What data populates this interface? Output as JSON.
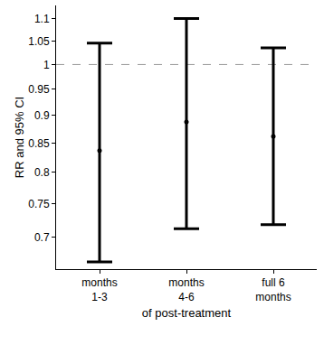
{
  "chart_data": {
    "type": "scatter",
    "x_label": "of post-treatment",
    "y_label": "RR and 95% CI",
    "categories": [
      "months\n1-3",
      "months\n4-6",
      "full 6\nmonths"
    ],
    "values": [
      0.837,
      0.888,
      0.862
    ],
    "ci_lower": [
      0.665,
      0.712,
      0.718
    ],
    "ci_upper": [
      1.045,
      1.1,
      1.035
    ],
    "reference_line": 1,
    "color": "#000000",
    "log": "y",
    "grid": false,
    "ylim": [
      0.655,
      1.13
    ],
    "yticks": [
      0.7,
      0.75,
      0.8,
      0.85,
      0.9,
      0.95,
      1,
      1.05,
      1.1
    ]
  }
}
